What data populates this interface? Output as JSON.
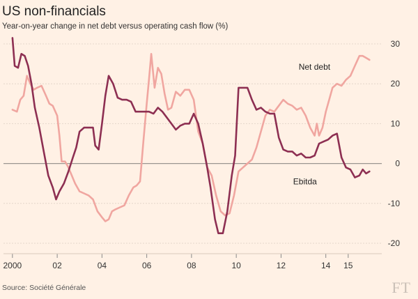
{
  "chart_data": {
    "type": "line",
    "title": "US non-financials",
    "subtitle": "Year-on-year change in net debt versus operating cash flow (%)",
    "source": "Source: Société Générale",
    "brand": "FT",
    "xlim": [
      1999.6,
      2016.5
    ],
    "ylim": [
      -20,
      30
    ],
    "yticks": [
      30,
      20,
      10,
      0,
      -10,
      -20
    ],
    "xticks": [
      {
        "value": 2000,
        "label": "2000"
      },
      {
        "value": 2002,
        "label": "02"
      },
      {
        "value": 2004,
        "label": "04"
      },
      {
        "value": 2006,
        "label": "06"
      },
      {
        "value": 2008,
        "label": "08"
      },
      {
        "value": 2010,
        "label": "10"
      },
      {
        "value": 2012,
        "label": "12"
      },
      {
        "value": 2014,
        "label": "14"
      },
      {
        "value": 2015,
        "label": "15"
      }
    ],
    "grid": true,
    "series": [
      {
        "name": "Net debt",
        "color": "#f0a6a0",
        "label_at": [
          2014.2,
          23.5
        ],
        "points": [
          [
            2000.0,
            13.5
          ],
          [
            2000.2,
            13.0
          ],
          [
            2000.35,
            16.0
          ],
          [
            2000.5,
            17.0
          ],
          [
            2000.65,
            22.0
          ],
          [
            2000.8,
            20.0
          ],
          [
            2000.95,
            18.5
          ],
          [
            2001.1,
            19.0
          ],
          [
            2001.3,
            19.5
          ],
          [
            2001.5,
            17.0
          ],
          [
            2001.65,
            15.0
          ],
          [
            2001.8,
            14.5
          ],
          [
            2002.0,
            12.0
          ],
          [
            2002.1,
            7.0
          ],
          [
            2002.2,
            0.5
          ],
          [
            2002.35,
            0.5
          ],
          [
            2002.5,
            -1.0
          ],
          [
            2002.65,
            -3.0
          ],
          [
            2002.8,
            -5.0
          ],
          [
            2003.0,
            -7.0
          ],
          [
            2003.2,
            -7.5
          ],
          [
            2003.4,
            -8.0
          ],
          [
            2003.6,
            -9.0
          ],
          [
            2003.8,
            -12.0
          ],
          [
            2004.0,
            -13.5
          ],
          [
            2004.15,
            -14.5
          ],
          [
            2004.3,
            -14.0
          ],
          [
            2004.45,
            -12.0
          ],
          [
            2004.6,
            -11.5
          ],
          [
            2004.8,
            -11.0
          ],
          [
            2005.0,
            -10.5
          ],
          [
            2005.2,
            -8.0
          ],
          [
            2005.4,
            -6.0
          ],
          [
            2005.55,
            -5.5
          ],
          [
            2005.7,
            -4.5
          ],
          [
            2005.85,
            5.5
          ],
          [
            2006.0,
            15.0
          ],
          [
            2006.1,
            21.0
          ],
          [
            2006.2,
            27.5
          ],
          [
            2006.35,
            19.0
          ],
          [
            2006.5,
            24.0
          ],
          [
            2006.65,
            22.5
          ],
          [
            2006.8,
            17.5
          ],
          [
            2006.95,
            13.5
          ],
          [
            2007.1,
            14.0
          ],
          [
            2007.3,
            18.0
          ],
          [
            2007.5,
            17.0
          ],
          [
            2007.7,
            18.5
          ],
          [
            2007.9,
            18.5
          ],
          [
            2008.1,
            16.0
          ],
          [
            2008.3,
            8.0
          ],
          [
            2008.5,
            5.0
          ],
          [
            2008.7,
            -1.0
          ],
          [
            2008.9,
            -3.0
          ],
          [
            2009.1,
            -8.0
          ],
          [
            2009.3,
            -12.0
          ],
          [
            2009.5,
            -13.0
          ],
          [
            2009.7,
            -12.5
          ],
          [
            2009.9,
            -8.0
          ],
          [
            2010.1,
            -2.0
          ],
          [
            2010.3,
            -1.0
          ],
          [
            2010.5,
            0.0
          ],
          [
            2010.7,
            1.0
          ],
          [
            2010.9,
            4.0
          ],
          [
            2011.1,
            8.0
          ],
          [
            2011.3,
            12.0
          ],
          [
            2011.5,
            13.5
          ],
          [
            2011.7,
            13.0
          ],
          [
            2011.9,
            14.5
          ],
          [
            2012.1,
            16.0
          ],
          [
            2012.3,
            15.0
          ],
          [
            2012.5,
            14.5
          ],
          [
            2012.7,
            13.5
          ],
          [
            2012.9,
            14.0
          ],
          [
            2013.1,
            12.0
          ],
          [
            2013.3,
            9.0
          ],
          [
            2013.5,
            7.0
          ],
          [
            2013.6,
            10.0
          ],
          [
            2013.7,
            7.0
          ],
          [
            2013.85,
            9.0
          ],
          [
            2014.0,
            13.0
          ],
          [
            2014.15,
            16.0
          ],
          [
            2014.3,
            19.0
          ],
          [
            2014.5,
            20.0
          ],
          [
            2014.7,
            19.5
          ],
          [
            2014.9,
            21.0
          ],
          [
            2015.1,
            22.0
          ],
          [
            2015.3,
            24.5
          ],
          [
            2015.5,
            27.0
          ],
          [
            2015.65,
            27.0
          ],
          [
            2015.8,
            26.5
          ],
          [
            2015.95,
            26.0
          ]
        ]
      },
      {
        "name": "Ebitda",
        "color": "#8d2f52",
        "label_at": [
          2013.6,
          -5.2
        ],
        "points": [
          [
            2000.0,
            31.5
          ],
          [
            2000.1,
            24.5
          ],
          [
            2000.25,
            24.0
          ],
          [
            2000.4,
            27.5
          ],
          [
            2000.55,
            27.0
          ],
          [
            2000.7,
            24.5
          ],
          [
            2000.85,
            20.0
          ],
          [
            2001.0,
            14.0
          ],
          [
            2001.2,
            9.0
          ],
          [
            2001.4,
            3.0
          ],
          [
            2001.6,
            -3.0
          ],
          [
            2001.8,
            -6.0
          ],
          [
            2001.95,
            -9.0
          ],
          [
            2002.1,
            -7.0
          ],
          [
            2002.3,
            -5.0
          ],
          [
            2002.5,
            -2.0
          ],
          [
            2002.7,
            1.5
          ],
          [
            2002.85,
            4.0
          ],
          [
            2003.0,
            8.0
          ],
          [
            2003.2,
            9.0
          ],
          [
            2003.4,
            9.0
          ],
          [
            2003.6,
            9.0
          ],
          [
            2003.7,
            4.5
          ],
          [
            2003.85,
            3.5
          ],
          [
            2004.0,
            10.0
          ],
          [
            2004.15,
            17.0
          ],
          [
            2004.3,
            22.0
          ],
          [
            2004.5,
            20.0
          ],
          [
            2004.7,
            16.5
          ],
          [
            2004.9,
            16.0
          ],
          [
            2005.1,
            16.0
          ],
          [
            2005.3,
            15.5
          ],
          [
            2005.5,
            13.0
          ],
          [
            2005.7,
            13.0
          ],
          [
            2005.9,
            13.0
          ],
          [
            2006.1,
            13.0
          ],
          [
            2006.3,
            12.5
          ],
          [
            2006.5,
            14.0
          ],
          [
            2006.7,
            13.0
          ],
          [
            2006.9,
            11.5
          ],
          [
            2007.1,
            10.0
          ],
          [
            2007.3,
            8.5
          ],
          [
            2007.5,
            9.5
          ],
          [
            2007.7,
            10.0
          ],
          [
            2007.9,
            10.0
          ],
          [
            2008.1,
            12.5
          ],
          [
            2008.3,
            10.0
          ],
          [
            2008.5,
            5.0
          ],
          [
            2008.7,
            -1.0
          ],
          [
            2008.85,
            -6.0
          ],
          [
            2008.95,
            -10.0
          ],
          [
            2009.05,
            -14.0
          ],
          [
            2009.2,
            -17.5
          ],
          [
            2009.4,
            -17.5
          ],
          [
            2009.6,
            -12.0
          ],
          [
            2009.8,
            -3.0
          ],
          [
            2009.95,
            2.0
          ],
          [
            2010.1,
            19.0
          ],
          [
            2010.3,
            19.0
          ],
          [
            2010.5,
            19.0
          ],
          [
            2010.7,
            16.0
          ],
          [
            2010.9,
            13.5
          ],
          [
            2011.1,
            14.0
          ],
          [
            2011.3,
            13.0
          ],
          [
            2011.5,
            12.5
          ],
          [
            2011.7,
            12.5
          ],
          [
            2011.9,
            6.5
          ],
          [
            2012.1,
            3.5
          ],
          [
            2012.3,
            3.0
          ],
          [
            2012.5,
            3.0
          ],
          [
            2012.7,
            2.0
          ],
          [
            2012.9,
            2.5
          ],
          [
            2013.1,
            1.5
          ],
          [
            2013.3,
            1.5
          ],
          [
            2013.5,
            2.0
          ],
          [
            2013.7,
            5.0
          ],
          [
            2013.9,
            5.5
          ],
          [
            2014.1,
            6.0
          ],
          [
            2014.3,
            7.0
          ],
          [
            2014.5,
            7.5
          ],
          [
            2014.7,
            1.5
          ],
          [
            2014.9,
            -1.0
          ],
          [
            2015.1,
            -1.5
          ],
          [
            2015.3,
            -3.5
          ],
          [
            2015.5,
            -3.0
          ],
          [
            2015.65,
            -1.5
          ],
          [
            2015.8,
            -2.5
          ],
          [
            2015.95,
            -2.0
          ]
        ]
      }
    ]
  }
}
